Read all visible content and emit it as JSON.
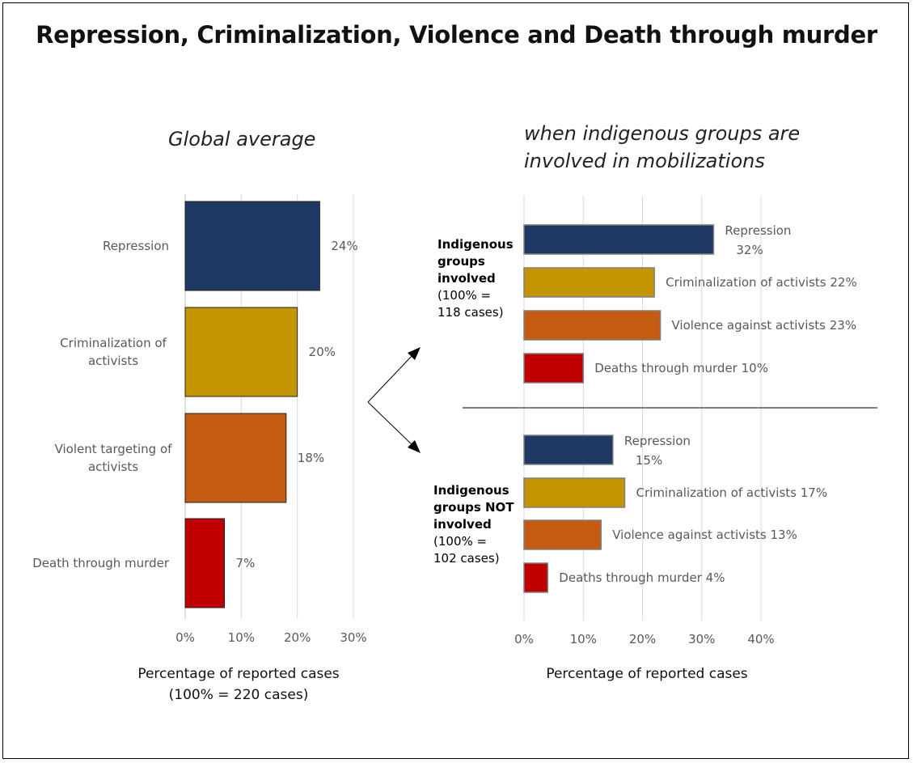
{
  "title": "Repression, Criminalization, Violence and Death through murder",
  "colors": {
    "repression": "#203864",
    "criminalization": "#c39500",
    "violence": "#c55a11",
    "death": "#c00000"
  },
  "chart_data": [
    {
      "type": "bar",
      "orientation": "horizontal",
      "subtitle": "Global average",
      "xlabel": "Percentage of reported cases",
      "xlabel_note": "(100% = 220 cases)",
      "xlim": [
        0,
        30
      ],
      "xticks": [
        "0%",
        "10%",
        "20%",
        "30%"
      ],
      "grid": true,
      "categories": [
        "Repression",
        "Criminalization of activists",
        "Violent targeting of activists",
        "Death through murder"
      ],
      "values": [
        24,
        20,
        18,
        7
      ],
      "labels": [
        "24%",
        "20%",
        "18%",
        "7%"
      ]
    },
    {
      "type": "bar",
      "orientation": "horizontal",
      "subtitle": "when indigenous groups are involved in mobilizations",
      "subtitle_lines": [
        "when indigenous groups are",
        "involved in mobilizations"
      ],
      "xlabel": "Percentage of reported cases",
      "xlim": [
        0,
        40
      ],
      "xticks": [
        "0%",
        "10%",
        "20%",
        "30%",
        "40%"
      ],
      "grid": true,
      "groups": [
        {
          "name_lines": [
            "Indigenous",
            "groups",
            "involved"
          ],
          "note_lines": [
            "(100% =",
            "118 cases)"
          ],
          "categories": [
            "Repression",
            "Criminalization of activists",
            "Violence against activists",
            "Deaths through murder"
          ],
          "values": [
            32,
            22,
            23,
            10
          ],
          "labels": [
            "Repression",
            "32%",
            "Criminalization of activists 22%",
            "Violence against activists 23%",
            "Deaths through murder 10%"
          ]
        },
        {
          "name_lines": [
            "Indigenous",
            "groups NOT",
            "involved"
          ],
          "note_lines": [
            "(100% =",
            "102 cases)"
          ],
          "categories": [
            "Repression",
            "Criminalization of activists",
            "Violence against activists",
            "Deaths through murder"
          ],
          "values": [
            15,
            17,
            13,
            4
          ],
          "labels": [
            "Repression",
            "15%",
            "Criminalization of activists 17%",
            "Violence against activists 13%",
            "Deaths through murder 4%"
          ]
        }
      ]
    }
  ]
}
